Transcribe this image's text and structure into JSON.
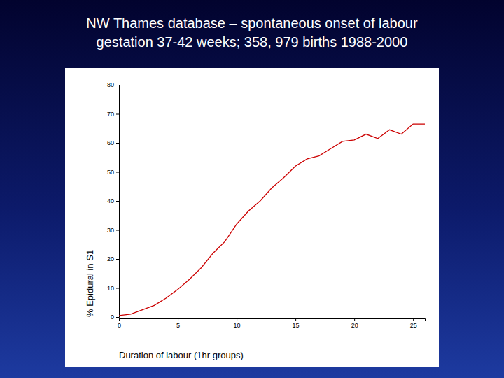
{
  "chart_data": {
    "type": "line",
    "title": "NW Thames database – spontaneous onset of labour",
    "subtitle": "gestation 37-42 weeks; 358, 979 births 1988-2000",
    "x_label": "Duration of labour (1hr groups)",
    "y_label": "% Epidural in S1",
    "x": [
      0,
      1,
      2,
      3,
      4,
      5,
      6,
      7,
      8,
      9,
      10,
      11,
      12,
      13,
      14,
      15,
      16,
      17,
      18,
      19,
      20,
      21,
      22,
      23,
      24,
      25,
      26
    ],
    "values": [
      0.5,
      1,
      2.5,
      4,
      6.5,
      9.5,
      13,
      17,
      22,
      26,
      32,
      36.5,
      40,
      44.5,
      48,
      52,
      54.5,
      55.5,
      58,
      60.5,
      61,
      63,
      61.5,
      64.5,
      63,
      66.5,
      66.5
    ],
    "color": "#cc0000",
    "xlim": [
      0,
      26
    ],
    "xticks": [
      0,
      5,
      10,
      15,
      20,
      25
    ],
    "ylim": [
      0,
      80
    ],
    "yticks": [
      0,
      10,
      20,
      30,
      40,
      50,
      60,
      70,
      80
    ],
    "grid": false
  }
}
